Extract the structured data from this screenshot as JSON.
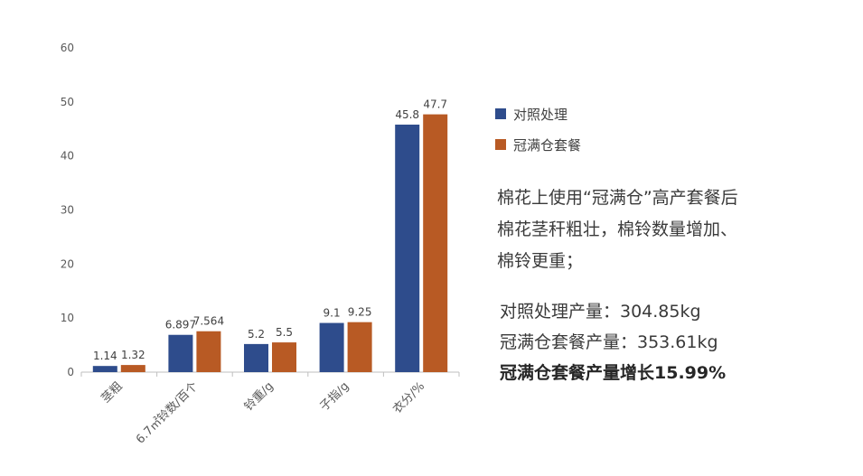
{
  "chart_data": {
    "type": "bar",
    "categories": [
      "茎粗",
      "6.7㎡铃数/百个",
      "铃重/g",
      "子指/g",
      "衣分/%"
    ],
    "series": [
      {
        "name": "对照处理",
        "values": [
          1.14,
          6.897,
          5.2,
          9.1,
          45.8
        ],
        "labels": [
          "1.14",
          "6.897",
          "5.2",
          "9.1",
          "45.8"
        ],
        "color": "#2E4C8C"
      },
      {
        "name": "冠满仓套餐",
        "values": [
          1.32,
          7.564,
          5.5,
          9.25,
          47.7
        ],
        "labels": [
          "1.32",
          "7.564",
          "5.5",
          "9.25",
          "47.7"
        ],
        "color": "#B85A24"
      }
    ],
    "ylim": [
      0,
      60
    ],
    "yticks": [
      "0",
      "10",
      "20",
      "30",
      "40",
      "50",
      "60"
    ],
    "grid": false,
    "legend": "right"
  },
  "notes": [
    "棉花上使用“冠满仓”高产套餐后",
    "棉花茎秆粗壮，棉铃数量增加、",
    "棉铃更重；"
  ],
  "stats": [
    "对照处理产量：304.85kg",
    "冠满仓套餐产量：353.61kg",
    "冠满仓套餐产量增长15.99%"
  ]
}
